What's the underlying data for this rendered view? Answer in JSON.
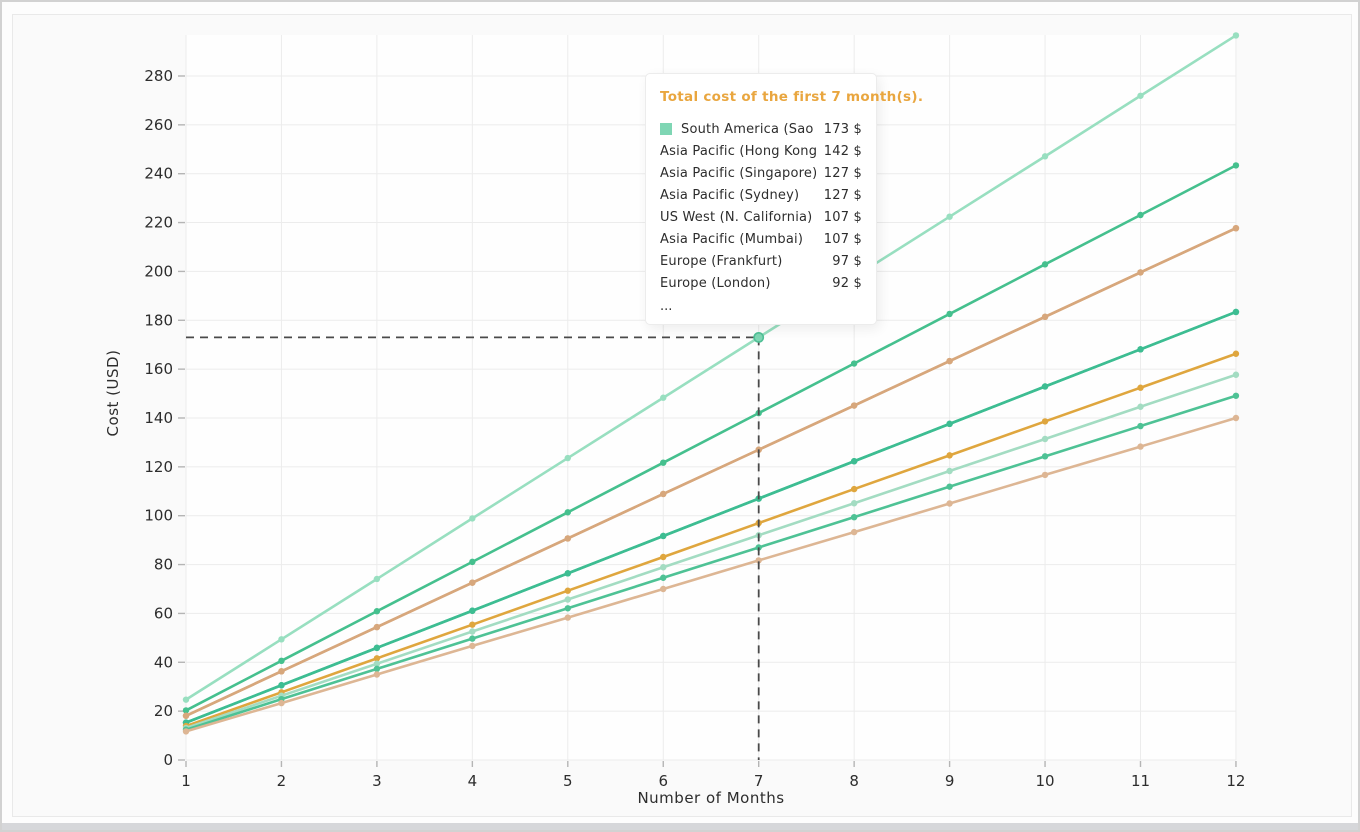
{
  "chart_data": {
    "type": "line",
    "xlabel": "Number of Months",
    "ylabel": "Cost (USD)",
    "x": [
      1,
      2,
      3,
      4,
      5,
      6,
      7,
      8,
      9,
      10,
      11,
      12
    ],
    "yticks": [
      0,
      20,
      40,
      60,
      80,
      100,
      120,
      140,
      160,
      180,
      200,
      220,
      240,
      260,
      280
    ],
    "ylim": [
      0,
      297
    ],
    "grid": true,
    "legend_position": "none",
    "series": [
      {
        "name": "South America (Sao Paulo)",
        "color": "#98dfc0",
        "total_7_months": 173,
        "values": [
          24.7,
          49.4,
          74.1,
          98.9,
          123.6,
          148.3,
          173.0,
          197.7,
          222.4,
          247.1,
          271.9,
          296.6
        ]
      },
      {
        "name": "Asia Pacific (Hong Kong)",
        "color": "#45c08e",
        "total_7_months": 142,
        "values": [
          20.3,
          40.6,
          60.9,
          81.1,
          101.4,
          121.7,
          142.0,
          162.3,
          182.6,
          202.9,
          223.1,
          243.4
        ]
      },
      {
        "name": "Asia Pacific (Singapore)",
        "color": "#d7a77c",
        "total_7_months": 127,
        "values": [
          18.1,
          36.3,
          54.4,
          72.6,
          90.7,
          108.9,
          127.0,
          145.1,
          163.3,
          181.4,
          199.6,
          217.7
        ]
      },
      {
        "name": "Asia Pacific (Sydney)",
        "color": "#d7a77c",
        "total_7_months": 127,
        "values": [
          18.1,
          36.3,
          54.4,
          72.6,
          90.7,
          108.9,
          127.0,
          145.1,
          163.3,
          181.4,
          199.6,
          217.7
        ]
      },
      {
        "name": "US West (N. California)",
        "color": "#3dbd92",
        "total_7_months": 107,
        "values": [
          15.3,
          30.6,
          45.9,
          61.1,
          76.4,
          91.7,
          107.0,
          122.3,
          137.6,
          152.9,
          168.1,
          183.4
        ]
      },
      {
        "name": "Asia Pacific (Mumbai)",
        "color": "#3dbd92",
        "total_7_months": 107,
        "values": [
          15.3,
          30.6,
          45.9,
          61.1,
          76.4,
          91.7,
          107.0,
          122.3,
          137.6,
          152.9,
          168.1,
          183.4
        ]
      },
      {
        "name": "Europe (Frankfurt)",
        "color": "#dfa63e",
        "total_7_months": 97,
        "values": [
          13.9,
          27.7,
          41.6,
          55.4,
          69.3,
          83.1,
          97.0,
          110.9,
          124.7,
          138.6,
          152.4,
          166.3
        ]
      },
      {
        "name": "Europe (London)",
        "color": "#a3dcc2",
        "total_7_months": 92,
        "values": [
          13.1,
          26.3,
          39.4,
          52.6,
          65.7,
          78.9,
          92.0,
          105.1,
          118.3,
          131.4,
          144.6,
          157.7
        ]
      },
      {
        "name": "",
        "color": "#4ec295",
        "values": [
          12.4,
          24.9,
          37.3,
          49.7,
          62.1,
          74.6,
          87.0,
          99.4,
          111.9,
          124.3,
          136.7,
          149.1
        ]
      },
      {
        "name": "",
        "color": "#ddb694",
        "values": [
          11.7,
          23.3,
          35.0,
          46.7,
          58.3,
          70.0,
          81.7,
          93.3,
          105.0,
          116.7,
          128.3,
          140.0
        ]
      }
    ],
    "crosshair": {
      "x": 7,
      "y": 173,
      "series": "South America (Sao Paulo)"
    }
  },
  "style": {
    "grid_color": "#ececec",
    "tick_color": "#b5b5b5",
    "axis_label_color": "#2d2d2d",
    "crosshair_color": "#4a4a4a",
    "plot_bg": "#fefefe",
    "highlight_point_fill": "#7fd6b4",
    "highlight_point_stroke": "#4fc096",
    "tooltip_title_color": "#e9a63f"
  },
  "tooltip": {
    "title": "Total cost of the first 7 month(s).",
    "rows": [
      {
        "label": "South America (Sao Paulo)",
        "value": "173 $",
        "marker_color": "#7fd6b4"
      },
      {
        "label": "Asia Pacific (Hong Kong)",
        "value": "142 $"
      },
      {
        "label": "Asia Pacific (Singapore)",
        "value": "127 $"
      },
      {
        "label": "Asia Pacific (Sydney)",
        "value": "127 $"
      },
      {
        "label": "US West (N. California)",
        "value": "107 $"
      },
      {
        "label": "Asia Pacific (Mumbai)",
        "value": "107 $"
      },
      {
        "label": "Europe (Frankfurt)",
        "value": "97 $"
      },
      {
        "label": "Europe (London)",
        "value": "92 $"
      }
    ],
    "ellipsis": "..."
  }
}
